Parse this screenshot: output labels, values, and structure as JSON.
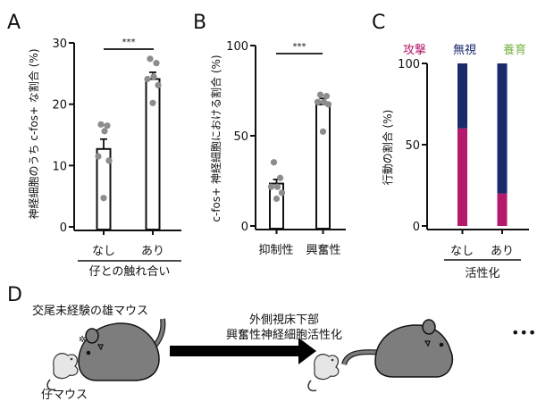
{
  "panels": {
    "A": {
      "letter": "A"
    },
    "B": {
      "letter": "B"
    },
    "C": {
      "letter": "C"
    },
    "D": {
      "letter": "D",
      "adult_label": "交尾未経験の雄マウス",
      "pup_label": "仔マウス",
      "arrow_label_line1": "外側視床下部",
      "arrow_label_line2": "興奮性神経細胞活性化",
      "ellipsis": "•••"
    }
  },
  "colors": {
    "aggression": "#b5196b",
    "ignore": "#1b2a6b",
    "nurture": "#7ab648",
    "points": "#8c8c8c",
    "mouse_adult": "#7d7d7d",
    "mouse_pup": "#e6e6e6"
  },
  "chart_data": [
    {
      "type": "bar",
      "panel": "A",
      "ylabel": "神経細胞のうち c-fos+ な割合 (%)",
      "xlabel": "仔との触れ合い",
      "categories": [
        "なし",
        "あり"
      ],
      "values": [
        12.7,
        24.1
      ],
      "error": [
        1.6,
        1.1
      ],
      "points": [
        [
          16.7,
          16.5,
          15.6,
          11.5,
          10.8,
          4.7
        ],
        [
          27.4,
          26.7,
          24.5,
          24.1,
          23.1,
          20.2
        ]
      ],
      "ylim": [
        0,
        30
      ],
      "yticks": [
        0,
        10,
        20,
        30
      ],
      "significance": "***"
    },
    {
      "type": "bar",
      "panel": "B",
      "ylabel": "c-fos+ 神経細胞における割合 (%)",
      "xlabel": "",
      "categories": [
        "抑制性",
        "興奮性"
      ],
      "values": [
        23.5,
        67.4
      ],
      "error": [
        2.3,
        3.3
      ],
      "points": [
        [
          35.3,
          26.6,
          21.7,
          21.7,
          18.4,
          15.1
        ],
        [
          72.7,
          72.0,
          68.7,
          68.7,
          67.4,
          52.3
        ]
      ],
      "ylim": [
        0,
        100
      ],
      "yticks": [
        0,
        50,
        100
      ],
      "significance": "***"
    },
    {
      "type": "bar",
      "stacked": true,
      "panel": "C",
      "ylabel": "行動の割合 (%)",
      "xlabel": "活性化",
      "categories": [
        "なし",
        "あり"
      ],
      "legend": [
        "攻撃",
        "無視",
        "養育"
      ],
      "legend_placement": "top",
      "series": [
        {
          "name": "攻撃",
          "values": [
            60,
            20
          ]
        },
        {
          "name": "無視",
          "values": [
            40,
            80
          ]
        },
        {
          "name": "養育",
          "values": [
            0,
            0
          ]
        }
      ],
      "ylim": [
        0,
        100
      ],
      "yticks": [
        0,
        50,
        100
      ]
    }
  ]
}
